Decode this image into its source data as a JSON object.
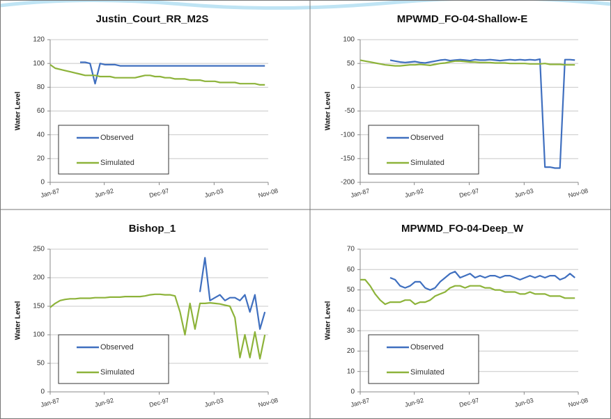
{
  "chart_data": [
    {
      "type": "line",
      "title": "Justin_Court_RR_M2S",
      "ylabel": "Water Level",
      "x": [
        "1987-01",
        "1987-07",
        "1988-01",
        "1988-07",
        "1989-01",
        "1989-07",
        "1990-01",
        "1990-07",
        "1991-01",
        "1991-07",
        "1992-01",
        "1992-07",
        "1993-01",
        "1993-07",
        "1994-01",
        "1994-07",
        "1995-01",
        "1995-07",
        "1996-01",
        "1996-07",
        "1997-01",
        "1997-07",
        "1998-01",
        "1998-07",
        "1999-01",
        "1999-07",
        "2000-01",
        "2000-07",
        "2001-01",
        "2001-07",
        "2002-01",
        "2002-07",
        "2003-01",
        "2003-07",
        "2004-01",
        "2004-07",
        "2005-01",
        "2005-07",
        "2006-01",
        "2006-07",
        "2007-01",
        "2007-07",
        "2008-01",
        "2008-07"
      ],
      "series": [
        {
          "name": "Observed",
          "color": "#3f6fbf",
          "values": [
            null,
            null,
            null,
            null,
            null,
            null,
            101,
            101,
            100,
            83,
            100,
            99,
            99,
            99,
            98,
            98,
            98,
            98,
            98,
            98,
            98,
            98,
            98,
            98,
            98,
            98,
            98,
            98,
            98,
            98,
            98,
            98,
            98,
            98,
            98,
            98,
            98,
            98,
            98,
            98,
            98,
            98,
            98,
            98
          ]
        },
        {
          "name": "Simulated",
          "color": "#8db33a",
          "values": [
            99,
            96,
            95,
            94,
            93,
            92,
            91,
            90,
            90,
            90,
            89,
            89,
            89,
            88,
            88,
            88,
            88,
            88,
            89,
            90,
            90,
            89,
            89,
            88,
            88,
            87,
            87,
            87,
            86,
            86,
            86,
            85,
            85,
            85,
            84,
            84,
            84,
            84,
            83,
            83,
            83,
            83,
            82,
            82
          ]
        }
      ],
      "xlim": [
        "1987-01",
        "2008-11"
      ],
      "xticks": [
        {
          "value": "1987-01",
          "label": "Jan-87"
        },
        {
          "value": "1992-06",
          "label": "Jun-92"
        },
        {
          "value": "1997-12",
          "label": "Dec-97"
        },
        {
          "value": "2003-06",
          "label": "Jun-03"
        },
        {
          "value": "2008-11",
          "label": "Nov-08"
        }
      ],
      "ylim": [
        0,
        120
      ],
      "yticks": [
        0,
        20,
        40,
        60,
        80,
        100,
        120
      ],
      "grid": true,
      "legend": "lower left"
    },
    {
      "type": "line",
      "title": "MPWMD_FO-04-Shallow-E",
      "ylabel": "Water Level",
      "x": [
        "1987-01",
        "1987-07",
        "1988-01",
        "1988-07",
        "1989-01",
        "1989-07",
        "1990-01",
        "1990-07",
        "1991-01",
        "1991-07",
        "1992-01",
        "1992-07",
        "1993-01",
        "1993-07",
        "1994-01",
        "1994-07",
        "1995-01",
        "1995-07",
        "1996-01",
        "1996-07",
        "1997-01",
        "1997-07",
        "1998-01",
        "1998-07",
        "1999-01",
        "1999-07",
        "2000-01",
        "2000-07",
        "2001-01",
        "2001-07",
        "2002-01",
        "2002-07",
        "2003-01",
        "2003-07",
        "2004-01",
        "2004-07",
        "2005-01",
        "2005-07",
        "2006-01",
        "2006-07",
        "2007-01",
        "2007-07",
        "2008-01",
        "2008-07"
      ],
      "series": [
        {
          "name": "Observed",
          "color": "#3f6fbf",
          "values": [
            null,
            null,
            null,
            null,
            null,
            null,
            57,
            55,
            53,
            52,
            53,
            54,
            52,
            51,
            53,
            55,
            57,
            58,
            56,
            57,
            58,
            57,
            56,
            58,
            57,
            57,
            58,
            57,
            56,
            57,
            58,
            57,
            58,
            57,
            58,
            57,
            59,
            -168,
            -168,
            -170,
            -170,
            58,
            58,
            57
          ]
        },
        {
          "name": "Simulated",
          "color": "#8db33a",
          "values": [
            57,
            55,
            53,
            51,
            49,
            47,
            46,
            45,
            45,
            46,
            47,
            47,
            48,
            47,
            46,
            48,
            50,
            51,
            53,
            55,
            55,
            54,
            53,
            53,
            52,
            52,
            52,
            51,
            51,
            51,
            50,
            50,
            50,
            50,
            49,
            49,
            49,
            50,
            48,
            48,
            48,
            47,
            47,
            47
          ]
        }
      ],
      "xlim": [
        "1987-01",
        "2008-11"
      ],
      "xticks": [
        {
          "value": "1987-01",
          "label": "Jan-87"
        },
        {
          "value": "1992-06",
          "label": "Jun-92"
        },
        {
          "value": "1997-12",
          "label": "Dec-97"
        },
        {
          "value": "2003-06",
          "label": "Jun-03"
        },
        {
          "value": "2008-11",
          "label": "Nov-08"
        }
      ],
      "ylim": [
        -200,
        100
      ],
      "yticks": [
        -200,
        -150,
        -100,
        -50,
        0,
        50,
        100
      ],
      "grid": true,
      "legend": "lower left"
    },
    {
      "type": "line",
      "title": "Bishop_1",
      "ylabel": "Water Level",
      "x": [
        "1987-01",
        "1987-07",
        "1988-01",
        "1988-07",
        "1989-01",
        "1989-07",
        "1990-01",
        "1990-07",
        "1991-01",
        "1991-07",
        "1992-01",
        "1992-07",
        "1993-01",
        "1993-07",
        "1994-01",
        "1994-07",
        "1995-01",
        "1995-07",
        "1996-01",
        "1996-07",
        "1997-01",
        "1997-07",
        "1998-01",
        "1998-07",
        "1999-01",
        "1999-07",
        "2000-01",
        "2000-07",
        "2001-01",
        "2001-07",
        "2002-01",
        "2002-07",
        "2003-01",
        "2003-07",
        "2004-01",
        "2004-07",
        "2005-01",
        "2005-07",
        "2006-01",
        "2006-07",
        "2007-01",
        "2007-07",
        "2008-01",
        "2008-07"
      ],
      "series": [
        {
          "name": "Observed",
          "color": "#3f6fbf",
          "values": [
            null,
            null,
            null,
            null,
            null,
            null,
            null,
            null,
            null,
            null,
            null,
            null,
            null,
            null,
            null,
            null,
            null,
            null,
            null,
            null,
            null,
            null,
            null,
            null,
            null,
            null,
            null,
            null,
            null,
            null,
            175,
            235,
            160,
            165,
            170,
            160,
            165,
            165,
            160,
            170,
            140,
            170,
            110,
            140
          ]
        },
        {
          "name": "Simulated",
          "color": "#8db33a",
          "values": [
            148,
            155,
            160,
            162,
            163,
            163,
            164,
            164,
            164,
            165,
            165,
            165,
            166,
            166,
            166,
            167,
            167,
            167,
            167,
            168,
            170,
            171,
            171,
            170,
            170,
            168,
            140,
            100,
            155,
            110,
            155,
            155,
            156,
            155,
            154,
            152,
            150,
            130,
            60,
            100,
            60,
            105,
            58,
            100
          ]
        }
      ],
      "xlim": [
        "1987-01",
        "2008-11"
      ],
      "xticks": [
        {
          "value": "1987-01",
          "label": "Jan-87"
        },
        {
          "value": "1992-06",
          "label": "Jun-92"
        },
        {
          "value": "1997-12",
          "label": "Dec-97"
        },
        {
          "value": "2003-06",
          "label": "Jun-03"
        },
        {
          "value": "2008-11",
          "label": "Nov-08"
        }
      ],
      "ylim": [
        0,
        250
      ],
      "yticks": [
        0,
        50,
        100,
        150,
        200,
        250
      ],
      "grid": true,
      "legend": "lower left"
    },
    {
      "type": "line",
      "title": "MPWMD_FO-04-Deep_W",
      "ylabel": "Water Level",
      "x": [
        "1987-01",
        "1987-07",
        "1988-01",
        "1988-07",
        "1989-01",
        "1989-07",
        "1990-01",
        "1990-07",
        "1991-01",
        "1991-07",
        "1992-01",
        "1992-07",
        "1993-01",
        "1993-07",
        "1994-01",
        "1994-07",
        "1995-01",
        "1995-07",
        "1996-01",
        "1996-07",
        "1997-01",
        "1997-07",
        "1998-01",
        "1998-07",
        "1999-01",
        "1999-07",
        "2000-01",
        "2000-07",
        "2001-01",
        "2001-07",
        "2002-01",
        "2002-07",
        "2003-01",
        "2003-07",
        "2004-01",
        "2004-07",
        "2005-01",
        "2005-07",
        "2006-01",
        "2006-07",
        "2007-01",
        "2007-07",
        "2008-01",
        "2008-07"
      ],
      "series": [
        {
          "name": "Observed",
          "color": "#3f6fbf",
          "values": [
            null,
            null,
            null,
            null,
            null,
            null,
            56,
            55,
            52,
            51,
            52,
            54,
            54,
            51,
            50,
            51,
            54,
            56,
            58,
            59,
            56,
            57,
            58,
            56,
            57,
            56,
            57,
            57,
            56,
            57,
            57,
            56,
            55,
            56,
            57,
            56,
            57,
            56,
            57,
            57,
            55,
            56,
            58,
            56
          ]
        },
        {
          "name": "Simulated",
          "color": "#8db33a",
          "values": [
            55,
            55,
            52,
            48,
            45,
            43,
            44,
            44,
            44,
            45,
            45,
            43,
            44,
            44,
            45,
            47,
            48,
            49,
            51,
            52,
            52,
            51,
            52,
            52,
            52,
            51,
            51,
            50,
            50,
            49,
            49,
            49,
            48,
            48,
            49,
            48,
            48,
            48,
            47,
            47,
            47,
            46,
            46,
            46
          ]
        }
      ],
      "xlim": [
        "1987-01",
        "2008-11"
      ],
      "xticks": [
        {
          "value": "1987-01",
          "label": "Jan-87"
        },
        {
          "value": "1992-06",
          "label": "Jun-92"
        },
        {
          "value": "1997-12",
          "label": "Dec-97"
        },
        {
          "value": "2003-06",
          "label": "Jun-03"
        },
        {
          "value": "2008-11",
          "label": "Nov-08"
        }
      ],
      "ylim": [
        0,
        70
      ],
      "yticks": [
        0,
        10,
        20,
        30,
        40,
        50,
        60,
        70
      ],
      "grid": true,
      "legend": "lower left"
    }
  ]
}
